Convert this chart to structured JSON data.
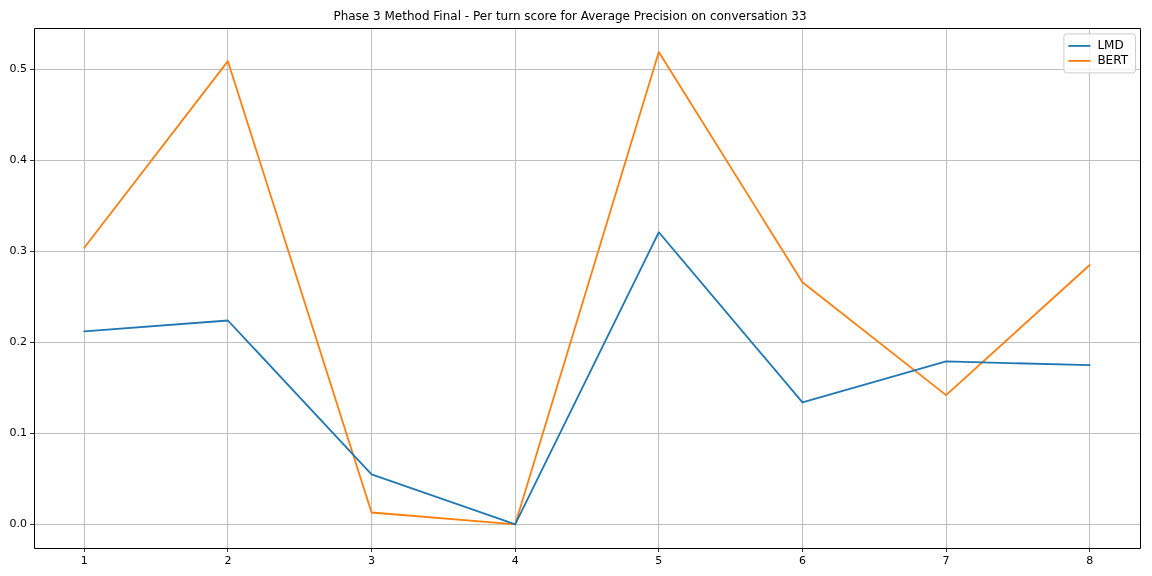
{
  "chart_data": {
    "type": "line",
    "title": "Phase 3 Method Final - Per turn score for Average Precision on conversation 33",
    "x": [
      1,
      2,
      3,
      4,
      5,
      6,
      7,
      8
    ],
    "series": [
      {
        "name": "LMD",
        "color": "#1f77b4",
        "values": [
          0.212,
          0.224,
          0.055,
          0.0,
          0.321,
          0.134,
          0.179,
          0.175
        ]
      },
      {
        "name": "BERT",
        "color": "#ff7f0e",
        "values": [
          0.304,
          0.509,
          0.013,
          0.0,
          0.519,
          0.266,
          0.142,
          0.285
        ]
      }
    ],
    "xlim": [
      0.65,
      8.35
    ],
    "xticks": [
      1,
      2,
      3,
      4,
      5,
      6,
      7,
      8
    ],
    "ylim": [
      -0.026,
      0.545
    ],
    "yticks": [
      {
        "value": 0,
        "label": "0.0"
      },
      0.1,
      0.2,
      0.3,
      0.4,
      0.5
    ],
    "grid": true,
    "legend": "top right",
    "marker": "none",
    "line_style": "solid"
  }
}
